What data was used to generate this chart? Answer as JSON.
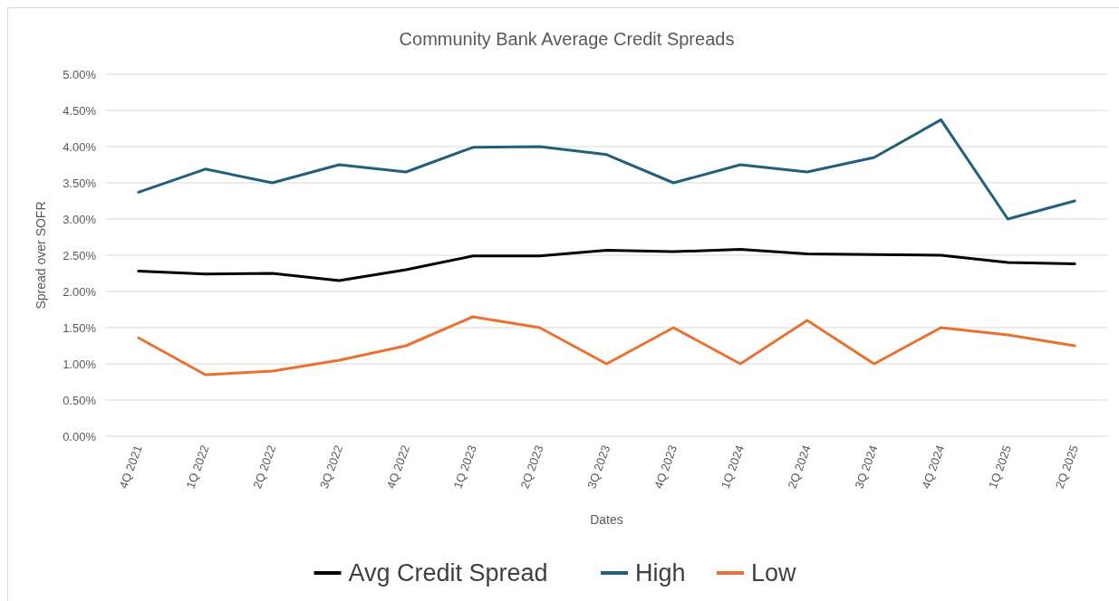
{
  "chart_data": {
    "type": "line",
    "title": "Community Bank Average Credit Spreads",
    "xlabel": "Dates",
    "ylabel": "Spread over SOFR",
    "categories": [
      "4Q 2021",
      "1Q 2022",
      "2Q 2022",
      "3Q 2022",
      "4Q 2022",
      "1Q 2023",
      "2Q 2023",
      "3Q 2023",
      "4Q 2023",
      "1Q 2024",
      "2Q 2024",
      "3Q 2024",
      "4Q 2024",
      "1Q 2025",
      "2Q 2025"
    ],
    "series": [
      {
        "name": "Avg Credit Spread",
        "color": "#000000",
        "values": [
          2.28,
          2.24,
          2.25,
          2.15,
          2.3,
          2.49,
          2.49,
          2.57,
          2.55,
          2.58,
          2.52,
          2.51,
          2.5,
          2.4,
          2.38
        ]
      },
      {
        "name": "High",
        "color": "#215f7b",
        "values": [
          3.37,
          3.69,
          3.5,
          3.75,
          3.65,
          3.99,
          4.0,
          3.89,
          3.5,
          3.75,
          3.65,
          3.85,
          4.37,
          3.0,
          3.25
        ]
      },
      {
        "name": "Low",
        "color": "#e97132",
        "values": [
          1.36,
          0.85,
          0.9,
          1.05,
          1.25,
          1.65,
          1.5,
          1.0,
          1.5,
          1.0,
          1.6,
          1.0,
          1.5,
          1.4,
          1.25
        ]
      }
    ],
    "ylim": [
      0,
      5
    ],
    "yticks": [
      {
        "value": 0,
        "label": "0.00%"
      },
      {
        "value": 0.5,
        "label": "0.50%"
      },
      {
        "value": 1,
        "label": "1.00%"
      },
      {
        "value": 1.5,
        "label": "1.50%"
      },
      {
        "value": 2,
        "label": "2.00%"
      },
      {
        "value": 2.5,
        "label": "2.50%"
      },
      {
        "value": 3,
        "label": "3.00%"
      },
      {
        "value": 3.5,
        "label": "3.50%"
      },
      {
        "value": 4,
        "label": "4.00%"
      },
      {
        "value": 4.5,
        "label": "4.50%"
      },
      {
        "value": 5,
        "label": "5.00%"
      }
    ],
    "grid": "y",
    "legend": "bottom",
    "marker": "none",
    "line_style": "solid"
  }
}
